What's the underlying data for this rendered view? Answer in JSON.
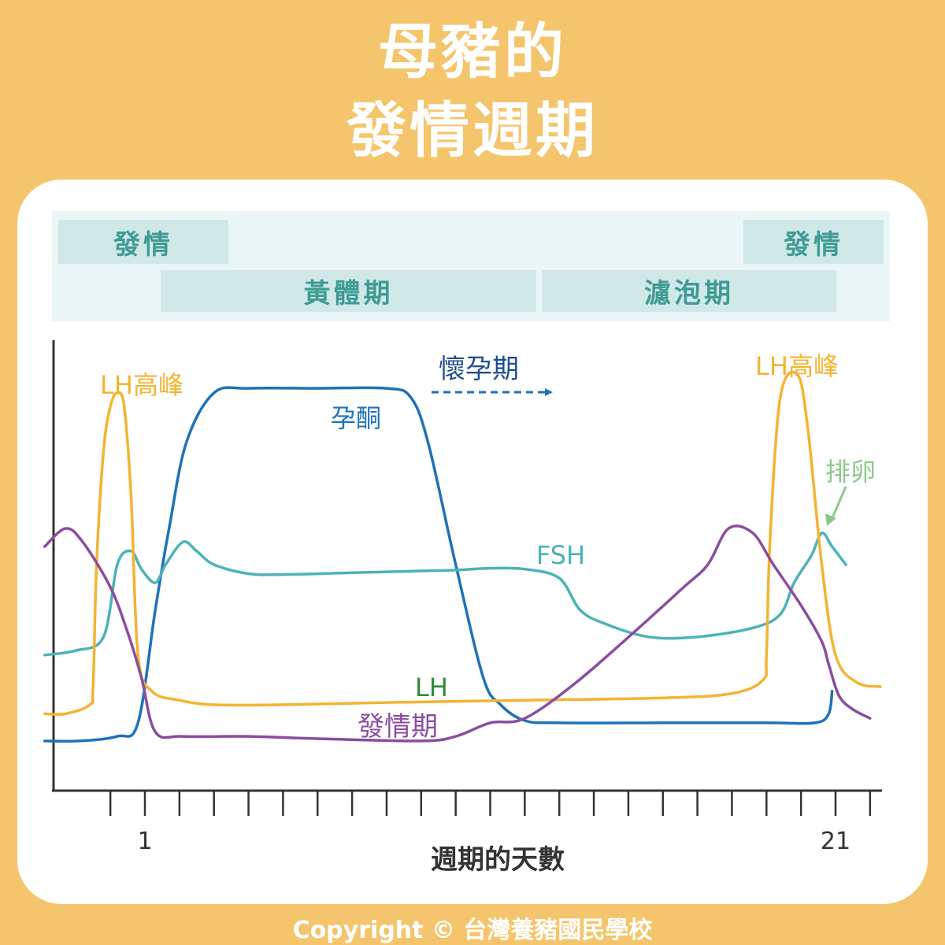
{
  "title": {
    "line1": "母豬的",
    "line2": "發情週期"
  },
  "phases": {
    "estrus_left": "發情",
    "estrus_right": "發情",
    "luteal": "黃體期",
    "follicular": "濾泡期"
  },
  "chart_data": {
    "type": "line",
    "xlabel": "週期的天數",
    "ticks": {
      "labeled": [
        "1",
        "21"
      ],
      "x_range": [
        -1.9,
        22.3
      ]
    },
    "series": [
      {
        "name": "孕酮",
        "color": "#1f72b8",
        "points": [
          [
            -1.9,
            0.11
          ],
          [
            -0.9,
            0.11
          ],
          [
            0.2,
            0.12
          ],
          [
            0.8,
            0.15
          ],
          [
            1.3,
            0.4
          ],
          [
            1.7,
            0.58
          ],
          [
            2.2,
            0.77
          ],
          [
            3,
            0.88
          ],
          [
            4,
            0.89
          ],
          [
            6,
            0.89
          ],
          [
            8,
            0.89
          ],
          [
            8.7,
            0.87
          ],
          [
            9.2,
            0.77
          ],
          [
            10,
            0.5
          ],
          [
            10.8,
            0.25
          ],
          [
            11.3,
            0.19
          ],
          [
            12,
            0.155
          ],
          [
            13,
            0.15
          ],
          [
            16,
            0.15
          ],
          [
            19,
            0.15
          ],
          [
            20.4,
            0.15
          ],
          [
            20.8,
            0.17
          ],
          [
            20.9,
            0.22
          ]
        ]
      },
      {
        "name": "FSH",
        "color": "#4cb3b6",
        "points": [
          [
            -1.9,
            0.3
          ],
          [
            -1,
            0.31
          ],
          [
            -0.2,
            0.34
          ],
          [
            0.2,
            0.5
          ],
          [
            0.6,
            0.53
          ],
          [
            0.9,
            0.49
          ],
          [
            1.3,
            0.46
          ],
          [
            1.6,
            0.5
          ],
          [
            2.1,
            0.55
          ],
          [
            2.5,
            0.53
          ],
          [
            3,
            0.5
          ],
          [
            4,
            0.48
          ],
          [
            5,
            0.478
          ],
          [
            7,
            0.482
          ],
          [
            9,
            0.486
          ],
          [
            10,
            0.488
          ],
          [
            11,
            0.492
          ],
          [
            12,
            0.49
          ],
          [
            13,
            0.47
          ],
          [
            13.6,
            0.4
          ],
          [
            14.3,
            0.37
          ],
          [
            15.6,
            0.34
          ],
          [
            17,
            0.34
          ],
          [
            18.6,
            0.36
          ],
          [
            19.4,
            0.39
          ],
          [
            19.8,
            0.46
          ],
          [
            20.3,
            0.52
          ],
          [
            20.6,
            0.57
          ],
          [
            20.9,
            0.54
          ],
          [
            21.3,
            0.5
          ]
        ]
      },
      {
        "name": "LH",
        "color": "#f3b433",
        "points": [
          [
            -1.9,
            0.17
          ],
          [
            -1.3,
            0.17
          ],
          [
            -0.6,
            0.19
          ],
          [
            -0.5,
            0.23
          ],
          [
            -0.4,
            0.5
          ],
          [
            -0.2,
            0.75
          ],
          [
            0,
            0.85
          ],
          [
            0.2,
            0.88
          ],
          [
            0.4,
            0.85
          ],
          [
            0.6,
            0.65
          ],
          [
            0.8,
            0.3
          ],
          [
            1.2,
            0.22
          ],
          [
            2,
            0.2
          ],
          [
            3,
            0.19
          ],
          [
            5,
            0.19
          ],
          [
            8,
            0.195
          ],
          [
            12,
            0.2
          ],
          [
            16,
            0.205
          ],
          [
            18,
            0.215
          ],
          [
            18.9,
            0.245
          ],
          [
            19,
            0.3
          ],
          [
            19.1,
            0.55
          ],
          [
            19.4,
            0.87
          ],
          [
            19.9,
            0.92
          ],
          [
            20.2,
            0.8
          ],
          [
            20.6,
            0.5
          ],
          [
            21,
            0.3
          ],
          [
            21.6,
            0.24
          ],
          [
            22.3,
            0.23
          ]
        ]
      },
      {
        "name": "發情期",
        "color": "#8b4d9f",
        "points": [
          [
            -1.9,
            0.54
          ],
          [
            -1.3,
            0.58
          ],
          [
            -0.8,
            0.55
          ],
          [
            0,
            0.45
          ],
          [
            0.5,
            0.35
          ],
          [
            0.9,
            0.25
          ],
          [
            1.3,
            0.13
          ],
          [
            2.1,
            0.12
          ],
          [
            4,
            0.12
          ],
          [
            6,
            0.115
          ],
          [
            9,
            0.11
          ],
          [
            10,
            0.12
          ],
          [
            11,
            0.15
          ],
          [
            12,
            0.16
          ],
          [
            13.5,
            0.24
          ],
          [
            15.3,
            0.36
          ],
          [
            16.6,
            0.45
          ],
          [
            17.3,
            0.5
          ],
          [
            17.9,
            0.58
          ],
          [
            18.6,
            0.57
          ],
          [
            19.2,
            0.5
          ],
          [
            20,
            0.41
          ],
          [
            20.6,
            0.33
          ],
          [
            20.8,
            0.28
          ],
          [
            21.1,
            0.21
          ],
          [
            21.5,
            0.18
          ],
          [
            22,
            0.16
          ]
        ]
      }
    ],
    "annotations": [
      {
        "text": "LH高峰",
        "color": "#f3b433"
      },
      {
        "text": "LH高峰",
        "color": "#f3b433"
      },
      {
        "text": "懷孕期",
        "color": "#1f4e8c"
      },
      {
        "text": "孕酮",
        "color": "#1f72b8"
      },
      {
        "text": "排卵",
        "color": "#8dc98a"
      },
      {
        "text": "FSH",
        "color": "#4cb3b6"
      },
      {
        "text": "LH",
        "color": "#2e8b3a"
      },
      {
        "text": "發情期",
        "color": "#8b4d9f"
      }
    ]
  },
  "footer": {
    "copyright": "Copyright © 台灣養豬國民學校"
  }
}
